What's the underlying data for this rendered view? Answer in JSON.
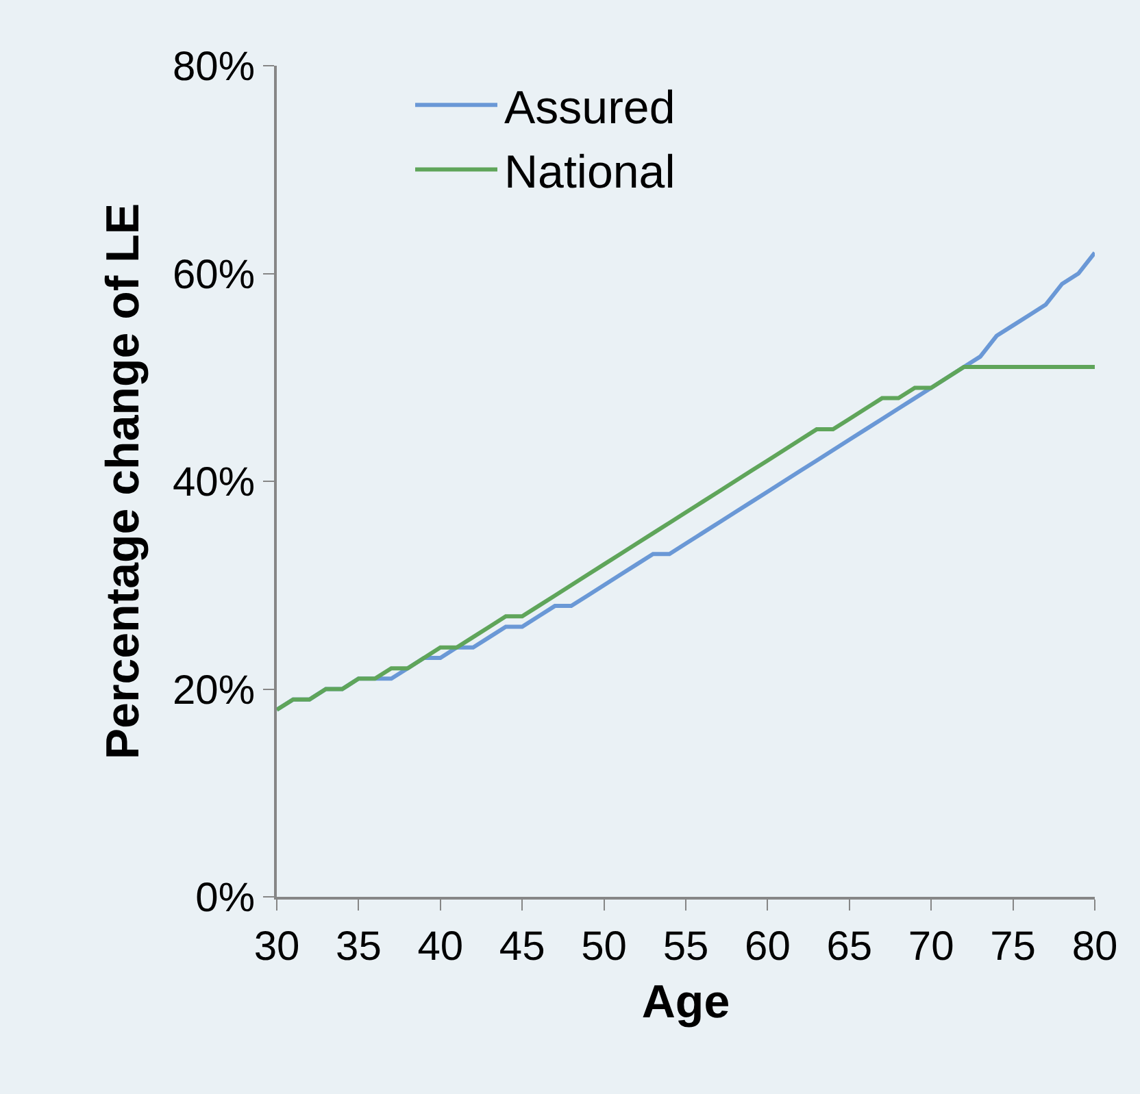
{
  "chart_data": {
    "type": "line",
    "xlabel": "Age",
    "ylabel": "Percentage change of LE",
    "x": [
      30,
      31,
      32,
      33,
      34,
      35,
      36,
      37,
      38,
      39,
      40,
      41,
      42,
      43,
      44,
      45,
      46,
      47,
      48,
      49,
      50,
      51,
      52,
      53,
      54,
      55,
      56,
      57,
      58,
      59,
      60,
      61,
      62,
      63,
      64,
      65,
      66,
      67,
      68,
      69,
      70,
      71,
      72,
      73,
      74,
      75,
      76,
      77,
      78,
      79,
      80
    ],
    "series": [
      {
        "name": "Assured",
        "color": "#6a98d6",
        "values": [
          18,
          19,
          19,
          20,
          20,
          21,
          21,
          21,
          22,
          23,
          23,
          24,
          24,
          25,
          26,
          26,
          27,
          28,
          28,
          29,
          30,
          31,
          32,
          33,
          33,
          34,
          35,
          36,
          37,
          38,
          39,
          40,
          41,
          42,
          43,
          44,
          45,
          46,
          47,
          48,
          49,
          50,
          51,
          52,
          54,
          55,
          56,
          57,
          59,
          60,
          62
        ]
      },
      {
        "name": "National",
        "color": "#5fa55a",
        "values": [
          18,
          19,
          19,
          20,
          20,
          21,
          21,
          22,
          22,
          23,
          24,
          24,
          25,
          26,
          27,
          27,
          28,
          29,
          30,
          31,
          32,
          33,
          34,
          35,
          36,
          37,
          38,
          39,
          40,
          41,
          42,
          43,
          44,
          45,
          45,
          46,
          47,
          48,
          48,
          49,
          49,
          50,
          51,
          51,
          51,
          51,
          51,
          51,
          51,
          51,
          51
        ]
      }
    ],
    "xlim": [
      30,
      80
    ],
    "xticks": [
      30,
      35,
      40,
      45,
      50,
      55,
      60,
      65,
      70,
      75,
      80
    ],
    "ylim": [
      0,
      80
    ],
    "yticks": [
      {
        "value": 0,
        "label": "0%"
      },
      {
        "value": 20,
        "label": "20%"
      },
      {
        "value": 40,
        "label": "40%"
      },
      {
        "value": 60,
        "label": "60%"
      },
      {
        "value": 80,
        "label": "80%"
      }
    ],
    "grid": false,
    "legend": "top",
    "marker": "none",
    "line_style": "solid"
  }
}
